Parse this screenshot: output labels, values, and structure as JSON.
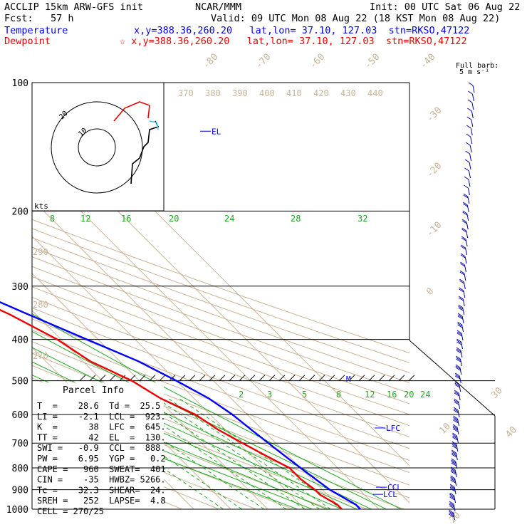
{
  "header": {
    "model": "ACCLIP 15km ARW-GFS init",
    "org": "NCAR/MMM",
    "init": "Init: 00 UTC Sat 06 Aug 22",
    "fcst": "Fcst:   57 h",
    "valid": "Valid: 09 UTC Mon 08 Aug 22 (18 KST Mon 08 Aug 22)",
    "temp_label": "Temperature",
    "temp_info": "x,y=388.36,260.20   lat,lon= 37.10, 127.03  stn=RKSO,47122",
    "dew_label": "Dewpoint",
    "dew_info": "☆ x,y=388.36,260.20   lat,lon= 37.10, 127.03  stn=RKSO,47122"
  },
  "colors": {
    "temperature": "#0000ff",
    "dewpoint": "#ee0000",
    "isotherm": "#c8b496",
    "mixing_ratio": "#22aa22",
    "wind_barb": "#0000a0",
    "hodograph_cyan": "#44ccee"
  },
  "barb_label": "Full barb:",
  "barb_units": "5 m s⁻¹",
  "hodo_units": "kts",
  "hodo_rings": [
    "20",
    "10"
  ],
  "pressure_labels": [
    "100",
    "200",
    "300",
    "400",
    "500",
    "600",
    "700",
    "800",
    "900",
    "1000"
  ],
  "theta_labels": [
    "370",
    "380",
    "390",
    "400",
    "410",
    "420",
    "430",
    "440"
  ],
  "theta_side_labels": [
    "290",
    "280",
    "270"
  ],
  "temp_diag_labels": [
    "-80",
    "-70",
    "-60",
    "-50",
    "-40",
    "-30",
    "-20",
    "-10",
    "0",
    "10",
    "20",
    "30",
    "40"
  ],
  "mix_labels_upper": [
    "8",
    "12",
    "16",
    "20",
    "24",
    "28",
    "32"
  ],
  "mix_labels_lower": [
    "2",
    "3",
    "5",
    "8",
    "12",
    "16",
    "20",
    "24"
  ],
  "level_markers": {
    "el": "EL",
    "m": "M",
    "lfc": "LFC",
    "ccl": "CCL",
    "lcl": "LCL"
  },
  "parcel_title": "Parcel Info",
  "parcel_rows": [
    "T  =    28.6  Td =  25.5",
    "LI =    -2.1  LCL =  923.",
    "K  =      38  LFC =  645.",
    "TT =      42  EL  =  130.",
    "SWI =   -0.9  CCL =  888.",
    "PW =    6.95  YGP =   0.2",
    "CAPE =   960  SWEAT=  401",
    "CIN =    -35  HWBZ= 5266.",
    "Tc =    32.3  SHEAR=  24.",
    "SREH =   252  LAPSE=  4.8",
    "CELL = 270/25"
  ],
  "chart_data": {
    "type": "line",
    "title": "",
    "y_axis": "pressure (hPa), log scale",
    "ylim": [
      1000,
      100
    ],
    "xlim_note": "skewed temperature (deg C)",
    "series": [
      {
        "name": "Temperature",
        "points": [
          [
            1000,
            25
          ],
          [
            975,
            25
          ],
          [
            950,
            24
          ],
          [
            925,
            23
          ],
          [
            900,
            22
          ],
          [
            850,
            21
          ],
          [
            800,
            20
          ],
          [
            750,
            19
          ],
          [
            700,
            18
          ],
          [
            650,
            17
          ],
          [
            600,
            16
          ],
          [
            550,
            14
          ],
          [
            500,
            10
          ],
          [
            450,
            5
          ],
          [
            400,
            -3
          ],
          [
            350,
            -12
          ],
          [
            300,
            -22
          ],
          [
            250,
            -32
          ],
          [
            200,
            -46
          ],
          [
            175,
            -55
          ],
          [
            150,
            -62
          ],
          [
            125,
            -70
          ],
          [
            110,
            -76
          ],
          [
            100,
            -80
          ]
        ]
      },
      {
        "name": "Dewpoint",
        "points": [
          [
            1000,
            20
          ],
          [
            975,
            20
          ],
          [
            950,
            19
          ],
          [
            925,
            18
          ],
          [
            900,
            18
          ],
          [
            850,
            17
          ],
          [
            800,
            17
          ],
          [
            750,
            14
          ],
          [
            700,
            11
          ],
          [
            650,
            8
          ],
          [
            600,
            6
          ],
          [
            550,
            1
          ],
          [
            500,
            -2
          ],
          [
            450,
            -8
          ],
          [
            400,
            -11
          ],
          [
            350,
            -17
          ],
          [
            300,
            -26
          ],
          [
            250,
            -38
          ],
          [
            200,
            -51
          ],
          [
            175,
            -61
          ],
          [
            150,
            -70
          ],
          [
            125,
            -78
          ],
          [
            110,
            -82
          ],
          [
            100,
            -86
          ]
        ]
      }
    ]
  }
}
